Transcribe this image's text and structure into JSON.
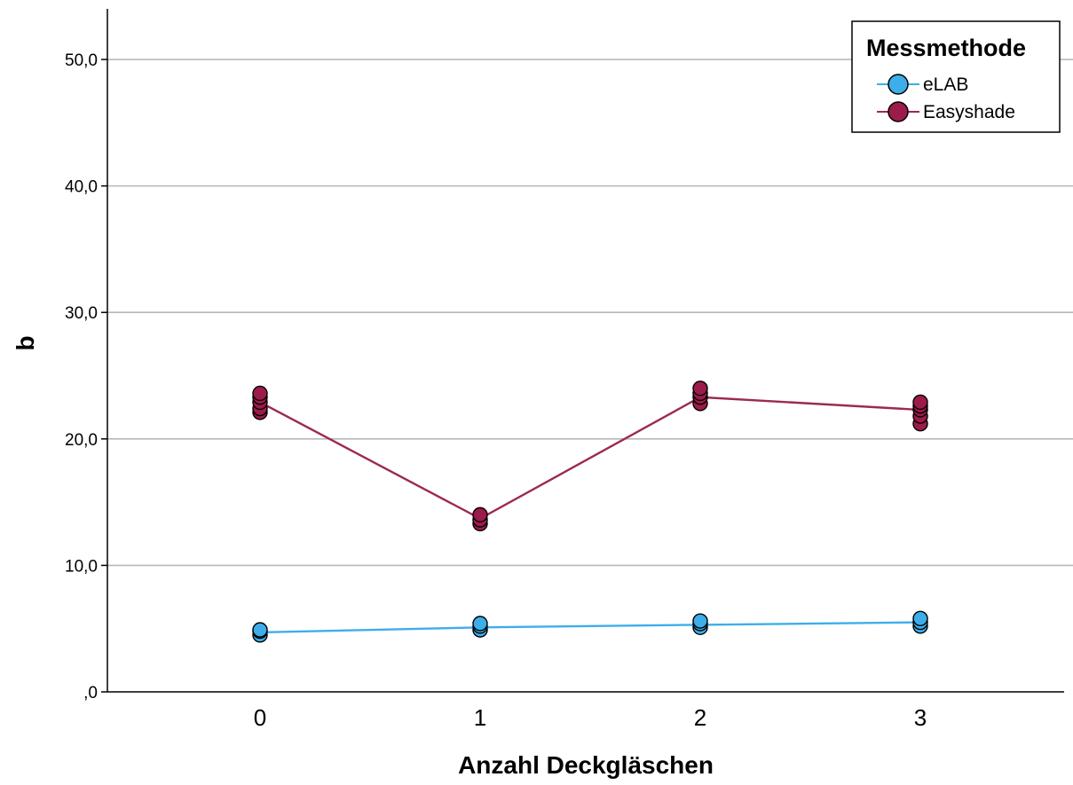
{
  "chart_data": {
    "type": "line",
    "xlabel": "Anzahl Deckgläschen",
    "ylabel": "b",
    "categories": [
      "0",
      "1",
      "2",
      "3"
    ],
    "ylim": [
      0,
      54
    ],
    "yticks": [
      0,
      10,
      20,
      30,
      40,
      50
    ],
    "ytick_labels": [
      ",0",
      "10,0",
      "20,0",
      "30,0",
      "40,0",
      "50,0"
    ],
    "grid": true,
    "legend": {
      "title": "Messmethode",
      "placement": "top-right"
    },
    "series": [
      {
        "name": "eLAB",
        "color": "#3daeea",
        "line_color": "#3daeea",
        "means": [
          4.7,
          5.1,
          5.3,
          5.5
        ],
        "points": [
          [
            4.5,
            4.8,
            4.9
          ],
          [
            4.9,
            5.2,
            5.4
          ],
          [
            5.1,
            5.4,
            5.6
          ],
          [
            5.2,
            5.5,
            5.8
          ]
        ]
      },
      {
        "name": "Easyshade",
        "color": "#9c1b4a",
        "line_color": "#9c2a52",
        "means": [
          22.9,
          13.7,
          23.3,
          22.3
        ],
        "points": [
          [
            22.1,
            22.4,
            22.9,
            23.3,
            23.6
          ],
          [
            13.3,
            13.6,
            14.0
          ],
          [
            22.8,
            23.3,
            23.6,
            24.0
          ],
          [
            21.2,
            21.8,
            22.3,
            22.6,
            22.9
          ]
        ]
      }
    ]
  }
}
